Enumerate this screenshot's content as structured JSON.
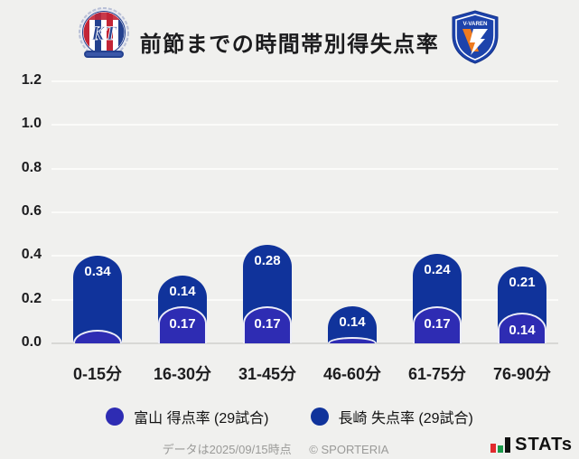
{
  "header": {
    "title": "前節までの時間帯別得失点率",
    "left_logo_name": "カターレ富山",
    "left_logo_monogram": "KT",
    "right_logo_name": "V・ファーレン長崎",
    "right_logo_text": "V-VAREN"
  },
  "chart_data": {
    "type": "bar",
    "stacked": true,
    "title": "前節までの時間帯別得失点率",
    "categories": [
      "0-15分",
      "16-30分",
      "31-45分",
      "46-60分",
      "61-75分",
      "76-90分"
    ],
    "series": [
      {
        "name": "富山 得点率 (29試合)",
        "color": "#2e2cb3",
        "values": [
          0.06,
          0.17,
          0.17,
          0.03,
          0.17,
          0.14
        ],
        "value_labels": [
          "",
          "0.17",
          "0.17",
          "",
          "0.17",
          "0.14"
        ]
      },
      {
        "name": "長崎 失点率 (29試合)",
        "color": "#10339b",
        "values": [
          0.34,
          0.14,
          0.28,
          0.14,
          0.24,
          0.21
        ],
        "value_labels": [
          "0.34",
          "0.14",
          "0.28",
          "0.14",
          "0.24",
          "0.21"
        ]
      }
    ],
    "ylim": [
      0,
      1.2
    ],
    "yticks": [
      "1.2",
      "1.0",
      "0.8",
      "0.6",
      "0.4",
      "0.2",
      "0.0"
    ],
    "grid": true,
    "legend_position": "bottom"
  },
  "legend": {
    "items": [
      {
        "label": "富山 得点率 (29試合)",
        "color": "#2e2cb3"
      },
      {
        "label": "長崎 失点率 (29試合)",
        "color": "#10339b"
      }
    ]
  },
  "footer": {
    "date_note": "データは2025/09/15時点",
    "copyright": "© SPORTERIA",
    "brand": "STATs"
  },
  "colors": {
    "background": "#f0f0ee",
    "bar_nagasaki": "#10339b",
    "bar_toyama": "#2e2cb3",
    "gridline": "#fbfbf9",
    "baseline": "#d8d8d5",
    "text": "#1d1d1f",
    "footer_text": "#9a9a98",
    "brand_red": "#e12a2e",
    "brand_green": "#1a9a4a"
  }
}
